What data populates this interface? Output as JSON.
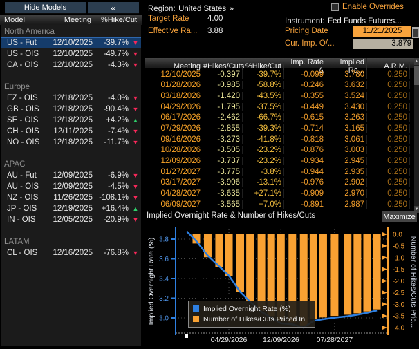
{
  "left_panel": {
    "hide_models_label": "Hide Models",
    "collapse_icon": "«",
    "columns": [
      "Model",
      "Meeting",
      "%Hike/Cut"
    ],
    "sections": [
      {
        "label": "North America",
        "rows": [
          {
            "model": "US - Fut",
            "meeting": "12/10/2025",
            "pct": "-39.7%",
            "dir": "down",
            "selected": true
          },
          {
            "model": "US - OIS",
            "meeting": "12/10/2025",
            "pct": "-49.7%",
            "dir": "down",
            "selected": false
          },
          {
            "model": "CA - OIS",
            "meeting": "12/10/2025",
            "pct": "-4.3%",
            "dir": "down",
            "selected": false
          }
        ]
      },
      {
        "label": "Europe",
        "rows": [
          {
            "model": "EZ - OIS",
            "meeting": "12/18/2025",
            "pct": "-4.0%",
            "dir": "down",
            "selected": false
          },
          {
            "model": "GB - OIS",
            "meeting": "12/18/2025",
            "pct": "-90.4%",
            "dir": "down",
            "selected": false
          },
          {
            "model": "SE - OIS",
            "meeting": "12/18/2025",
            "pct": "+4.2%",
            "dir": "up",
            "selected": false
          },
          {
            "model": "CH - OIS",
            "meeting": "12/11/2025",
            "pct": "-7.4%",
            "dir": "down",
            "selected": false
          },
          {
            "model": "NO - OIS",
            "meeting": "12/18/2025",
            "pct": "-11.7%",
            "dir": "down",
            "selected": false
          }
        ]
      },
      {
        "label": "APAC",
        "rows": [
          {
            "model": "AU - Fut",
            "meeting": "12/09/2025",
            "pct": "-6.9%",
            "dir": "down",
            "selected": false
          },
          {
            "model": "AU - OIS",
            "meeting": "12/09/2025",
            "pct": "-4.5%",
            "dir": "down",
            "selected": false
          },
          {
            "model": "NZ - OIS",
            "meeting": "11/26/2025",
            "pct": "-108.1%",
            "dir": "down",
            "selected": false
          },
          {
            "model": "JP - OIS",
            "meeting": "12/19/2025",
            "pct": "+16.4%",
            "dir": "up",
            "selected": false
          },
          {
            "model": "IN - OIS",
            "meeting": "12/05/2025",
            "pct": "-20.9%",
            "dir": "down",
            "selected": false
          }
        ]
      },
      {
        "label": "LATAM",
        "rows": [
          {
            "model": "CL - OIS",
            "meeting": "12/16/2025",
            "pct": "-76.8%",
            "dir": "down",
            "selected": false
          }
        ]
      }
    ]
  },
  "header": {
    "region_label": "Region:",
    "region_value": "United States",
    "region_more": "»",
    "target_rate_label": "Target Rate",
    "target_rate_value": "4.00",
    "effective_rate_label": "Effective Ra...",
    "effective_rate_value": "3.88",
    "enable_overrides_label": "Enable Overrides",
    "instrument_label": "Instrument:",
    "instrument_value": "Fed Funds Futures...",
    "pricing_date_label": "Pricing Date",
    "pricing_date_value": "11/21/2025",
    "cur_imp_label": "Cur. Imp. O/...",
    "cur_imp_value": "3.879"
  },
  "table": {
    "columns": [
      "Meeting",
      "#Hikes/Cuts",
      "%Hike/Cut",
      "Imp. Rate Δ",
      "Implied Ra...",
      "A.R.M."
    ],
    "rows": [
      [
        "12/10/2025",
        "-0.397",
        "-39.7%",
        "-0.099",
        "3.780",
        "0.250"
      ],
      [
        "01/28/2026",
        "-0.985",
        "-58.8%",
        "-0.246",
        "3.632",
        "0.250"
      ],
      [
        "03/18/2026",
        "-1.420",
        "-43.5%",
        "-0.355",
        "3.524",
        "0.250"
      ],
      [
        "04/29/2026",
        "-1.795",
        "-37.5%",
        "-0.449",
        "3.430",
        "0.250"
      ],
      [
        "06/17/2026",
        "-2.462",
        "-66.7%",
        "-0.615",
        "3.263",
        "0.250"
      ],
      [
        "07/29/2026",
        "-2.855",
        "-39.3%",
        "-0.714",
        "3.165",
        "0.250"
      ],
      [
        "09/16/2026",
        "-3.273",
        "-41.8%",
        "-0.818",
        "3.061",
        "0.250"
      ],
      [
        "10/28/2026",
        "-3.505",
        "-23.2%",
        "-0.876",
        "3.003",
        "0.250"
      ],
      [
        "12/09/2026",
        "-3.737",
        "-23.2%",
        "-0.934",
        "2.945",
        "0.250"
      ],
      [
        "01/27/2027",
        "-3.775",
        "-3.8%",
        "-0.944",
        "2.935",
        "0.250"
      ],
      [
        "03/17/2027",
        "-3.906",
        "-13.1%",
        "-0.976",
        "2.902",
        "0.250"
      ],
      [
        "04/28/2027",
        "-3.635",
        "+27.1%",
        "-0.909",
        "2.970",
        "0.250"
      ],
      [
        "06/09/2027",
        "-3.565",
        "+7.0%",
        "-0.891",
        "2.987",
        "0.250"
      ]
    ]
  },
  "chart_data": {
    "type": "line+bar",
    "title": "Implied Overnight Rate & Number of Hikes/Cuts",
    "maximize_label": "Maximize",
    "left_axis": {
      "label": "Implied Overnight Rate (%)",
      "ticks": [
        3.8,
        3.6,
        3.4,
        3.2,
        3.0
      ],
      "color": "#4f93e6"
    },
    "right_axis": {
      "label": "Number of Hikes/Cuts Pric...",
      "ticks": [
        0.0,
        -0.5,
        -1.0,
        -1.5,
        -2.0,
        -2.5,
        -3.0,
        -3.5,
        -4.0
      ],
      "color": "#f9a132"
    },
    "x_ticks": [
      {
        "label": "04/29/2026",
        "day": 140
      },
      {
        "label": "12/09/2026",
        "day": 364
      },
      {
        "label": "07/28/2027",
        "day": 595
      }
    ],
    "legend": [
      "Implied Overnight Rate (%)",
      "Number of Hikes/Cuts Priced In"
    ],
    "colors": {
      "line": "#2e7fe0",
      "bar": "#f9a132"
    },
    "start_rate": 3.88,
    "points": [
      {
        "date": "12/10/2025",
        "day": 0,
        "hikes": -0.397,
        "rate": 3.78
      },
      {
        "date": "01/28/2026",
        "day": 49,
        "hikes": -0.985,
        "rate": 3.632
      },
      {
        "date": "03/18/2026",
        "day": 98,
        "hikes": -1.42,
        "rate": 3.524
      },
      {
        "date": "04/29/2026",
        "day": 140,
        "hikes": -1.795,
        "rate": 3.43
      },
      {
        "date": "06/17/2026",
        "day": 189,
        "hikes": -2.462,
        "rate": 3.263
      },
      {
        "date": "07/29/2026",
        "day": 231,
        "hikes": -2.855,
        "rate": 3.165
      },
      {
        "date": "09/16/2026",
        "day": 280,
        "hikes": -3.273,
        "rate": 3.061
      },
      {
        "date": "10/28/2026",
        "day": 322,
        "hikes": -3.505,
        "rate": 3.003
      },
      {
        "date": "12/09/2026",
        "day": 364,
        "hikes": -3.737,
        "rate": 2.945
      },
      {
        "date": "01/27/2027",
        "day": 413,
        "hikes": -3.775,
        "rate": 2.935
      },
      {
        "date": "03/17/2027",
        "day": 462,
        "hikes": -3.906,
        "rate": 2.902
      },
      {
        "date": "04/28/2027",
        "day": 504,
        "hikes": -3.635,
        "rate": 2.97
      },
      {
        "date": "06/09/2027",
        "day": 546,
        "hikes": -3.565,
        "rate": 2.987
      },
      {
        "date": "07/28/2027",
        "day": 595,
        "hikes": -3.5,
        "rate": 3.003
      },
      {
        "date": "09/22/2027",
        "day": 651,
        "hikes": -3.45,
        "rate": 3.017
      },
      {
        "date": "11/03/2027",
        "day": 693,
        "hikes": -3.39,
        "rate": 3.032
      },
      {
        "date": "12/15/2027",
        "day": 735,
        "hikes": -3.31,
        "rate": 3.052
      },
      {
        "date": "01/26/2028",
        "day": 777,
        "hikes": -3.22,
        "rate": 3.075
      }
    ]
  }
}
